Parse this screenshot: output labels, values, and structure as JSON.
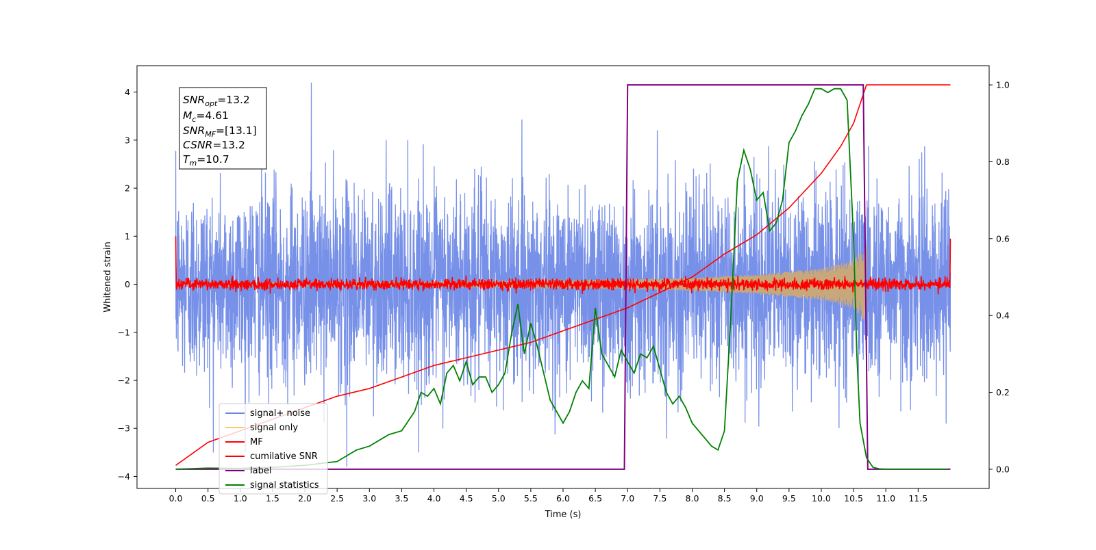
{
  "chart_data": {
    "type": "line",
    "xlabel": "Time (s)",
    "ylabel": "Whitened strain",
    "xlim": [
      -0.6,
      12.6
    ],
    "ylim_left": [
      -4.25,
      4.55
    ],
    "ylim_right": [
      -0.05,
      1.05
    ],
    "x_ticks": [
      "0.0",
      "0.5",
      "1.0",
      "1.5",
      "2.0",
      "2.5",
      "3.0",
      "3.5",
      "4.0",
      "4.5",
      "5.0",
      "5.5",
      "6.0",
      "6.5",
      "7.0",
      "7.5",
      "8.0",
      "8.5",
      "9.0",
      "9.5",
      "10.0",
      "10.5",
      "11.0",
      "11.5"
    ],
    "y_ticks_left": [
      "4",
      "3",
      "2",
      "1",
      "0",
      "−1",
      "−2",
      "−3",
      "−4"
    ],
    "y_ticks_right": [
      "1.0",
      "0.8",
      "0.6",
      "0.4",
      "0.2",
      "0.0"
    ],
    "annotation": {
      "line1": {
        "base": "SNR",
        "sub": "opt",
        "value": "=13.2"
      },
      "line2": {
        "base": "M",
        "sub": "c",
        "value": "=4.61"
      },
      "line3": {
        "base": "SNR",
        "sub": "MF",
        "value": "=[13.1]"
      },
      "line4": {
        "base": "CSNR",
        "sub": "",
        "value": "=13.2"
      },
      "line5": {
        "base": "T",
        "sub": "m",
        "value": "=10.7"
      }
    },
    "legend": {
      "placement": "lower-left",
      "entries": [
        {
          "label": "signal+ noise",
          "color": "#6b87e6"
        },
        {
          "label": "signal only",
          "color": "#ffc966"
        },
        {
          "label": "MF",
          "color": "#ff0000"
        },
        {
          "label": "cumilative SNR",
          "color": "#ff0000"
        },
        {
          "label": "label",
          "color": "#800080"
        },
        {
          "label": "signal statistics",
          "color": "#008000"
        }
      ]
    },
    "series": [
      {
        "name": "signal+ noise",
        "axis": "left",
        "color": "#6b87e6",
        "kind": "noise",
        "x_range": [
          0.0,
          12.0
        ],
        "std": 1.0,
        "x_max_peak": [
          2.1,
          4.2
        ],
        "x_min_peak": [
          2.65,
          -3.8
        ]
      },
      {
        "name": "signal only",
        "axis": "left",
        "color": "#c8a77a",
        "kind": "chirp",
        "x_range": [
          0.0,
          10.7
        ],
        "envelope": [
          [
            0.0,
            0.03
          ],
          [
            4.0,
            0.05
          ],
          [
            7.0,
            0.1
          ],
          [
            8.0,
            0.13
          ],
          [
            9.0,
            0.2
          ],
          [
            10.0,
            0.33
          ],
          [
            10.5,
            0.5
          ],
          [
            10.7,
            0.82
          ]
        ]
      },
      {
        "name": "MF",
        "axis": "left",
        "color": "#ff0000",
        "kind": "noise",
        "x_range": [
          0.0,
          12.0
        ],
        "std": 0.06,
        "start_value": 1.0,
        "end_value": 0.95
      },
      {
        "name": "cumilative SNR",
        "axis": "right",
        "x": [
          0.0,
          0.5,
          1.0,
          1.5,
          2.0,
          2.5,
          3.0,
          3.5,
          4.0,
          4.5,
          5.0,
          5.5,
          6.0,
          6.5,
          7.0,
          7.5,
          8.0,
          8.5,
          9.0,
          9.5,
          10.0,
          10.3,
          10.5,
          10.7,
          12.0
        ],
        "y": [
          0.01,
          0.07,
          0.1,
          0.13,
          0.16,
          0.19,
          0.21,
          0.24,
          0.27,
          0.29,
          0.31,
          0.33,
          0.36,
          0.39,
          0.42,
          0.46,
          0.5,
          0.56,
          0.61,
          0.68,
          0.77,
          0.84,
          0.9,
          1.0,
          1.0
        ]
      },
      {
        "name": "label",
        "axis": "right",
        "x": [
          0.0,
          6.95,
          7.0,
          10.65,
          10.72,
          12.0
        ],
        "y": [
          0.0,
          0.0,
          1.0,
          1.0,
          0.0,
          0.0
        ]
      },
      {
        "name": "signal statistics",
        "axis": "right",
        "x": [
          0.0,
          0.5,
          1.0,
          1.5,
          2.0,
          2.5,
          2.8,
          3.0,
          3.3,
          3.5,
          3.7,
          3.8,
          3.9,
          4.0,
          4.1,
          4.2,
          4.3,
          4.4,
          4.5,
          4.6,
          4.7,
          4.8,
          4.9,
          5.0,
          5.1,
          5.2,
          5.3,
          5.4,
          5.5,
          5.6,
          5.7,
          5.8,
          5.9,
          6.0,
          6.1,
          6.2,
          6.3,
          6.4,
          6.5,
          6.6,
          6.7,
          6.8,
          6.9,
          7.0,
          7.1,
          7.2,
          7.3,
          7.4,
          7.5,
          7.6,
          7.7,
          7.8,
          7.9,
          8.0,
          8.1,
          8.2,
          8.3,
          8.4,
          8.5,
          8.6,
          8.7,
          8.8,
          8.9,
          9.0,
          9.1,
          9.2,
          9.3,
          9.4,
          9.5,
          9.6,
          9.7,
          9.8,
          9.9,
          10.0,
          10.1,
          10.2,
          10.3,
          10.4,
          10.5,
          10.55,
          10.6,
          10.7,
          10.8,
          10.9,
          11.0,
          11.5,
          11.95
        ],
        "y": [
          0.0,
          0.003,
          0.002,
          0.005,
          0.01,
          0.02,
          0.05,
          0.06,
          0.09,
          0.1,
          0.15,
          0.2,
          0.19,
          0.21,
          0.17,
          0.25,
          0.27,
          0.23,
          0.28,
          0.22,
          0.24,
          0.24,
          0.2,
          0.22,
          0.25,
          0.35,
          0.43,
          0.3,
          0.38,
          0.32,
          0.25,
          0.18,
          0.15,
          0.12,
          0.15,
          0.2,
          0.23,
          0.21,
          0.42,
          0.3,
          0.27,
          0.24,
          0.31,
          0.28,
          0.25,
          0.3,
          0.29,
          0.32,
          0.26,
          0.2,
          0.17,
          0.19,
          0.16,
          0.12,
          0.1,
          0.08,
          0.06,
          0.05,
          0.1,
          0.4,
          0.75,
          0.83,
          0.78,
          0.7,
          0.72,
          0.62,
          0.64,
          0.7,
          0.85,
          0.88,
          0.92,
          0.95,
          0.99,
          0.99,
          0.98,
          0.99,
          0.99,
          0.96,
          0.6,
          0.3,
          0.12,
          0.03,
          0.005,
          0.001,
          0.0,
          0.0,
          0.0
        ]
      }
    ]
  }
}
